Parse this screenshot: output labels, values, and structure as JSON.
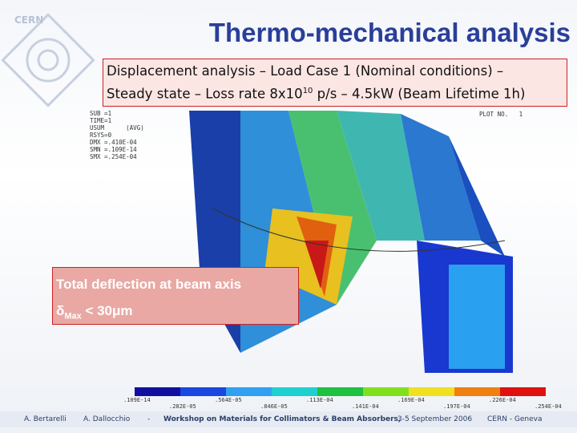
{
  "header": {
    "logo": "CERN",
    "title": "Thermo-mechanical analysis"
  },
  "subtitle": {
    "line1": "Displacement analysis – Load Case 1 (Nominal conditions) –",
    "line2": {
      "before": "Steady state – Loss rate 8x10",
      "sup": "10",
      "after": " p/s – 4.5kW (Beam Lifetime 1h)"
    }
  },
  "plot_info": {
    "left": [
      "SUB =1",
      "TIME=1",
      "USUM      (AVG)",
      "RSYS=0",
      "DMX =.410E-04",
      "SMN =.109E-14",
      "SMX =.254E-04"
    ],
    "right": "PLOT NO.   1"
  },
  "callout": {
    "line1": "Total deflection at beam axis",
    "line2": {
      "symbol": "δ",
      "sub": "Max",
      "after": " < 30μm"
    }
  },
  "legend": {
    "labels": [
      ".109E-14",
      ".282E-05",
      ".564E-05",
      ".846E-05",
      ".113E-04",
      ".141E-04",
      ".169E-04",
      ".197E-04",
      ".226E-04",
      ".254E-04"
    ]
  },
  "footer": {
    "author1": "A. Bertarelli",
    "author2": "A. Dallocchio",
    "separator": "-",
    "event": "Workshop on Materials for Collimators & Beam Absorbers,",
    "date": " 3-5 September 2006",
    "place": "CERN - Geneva"
  }
}
